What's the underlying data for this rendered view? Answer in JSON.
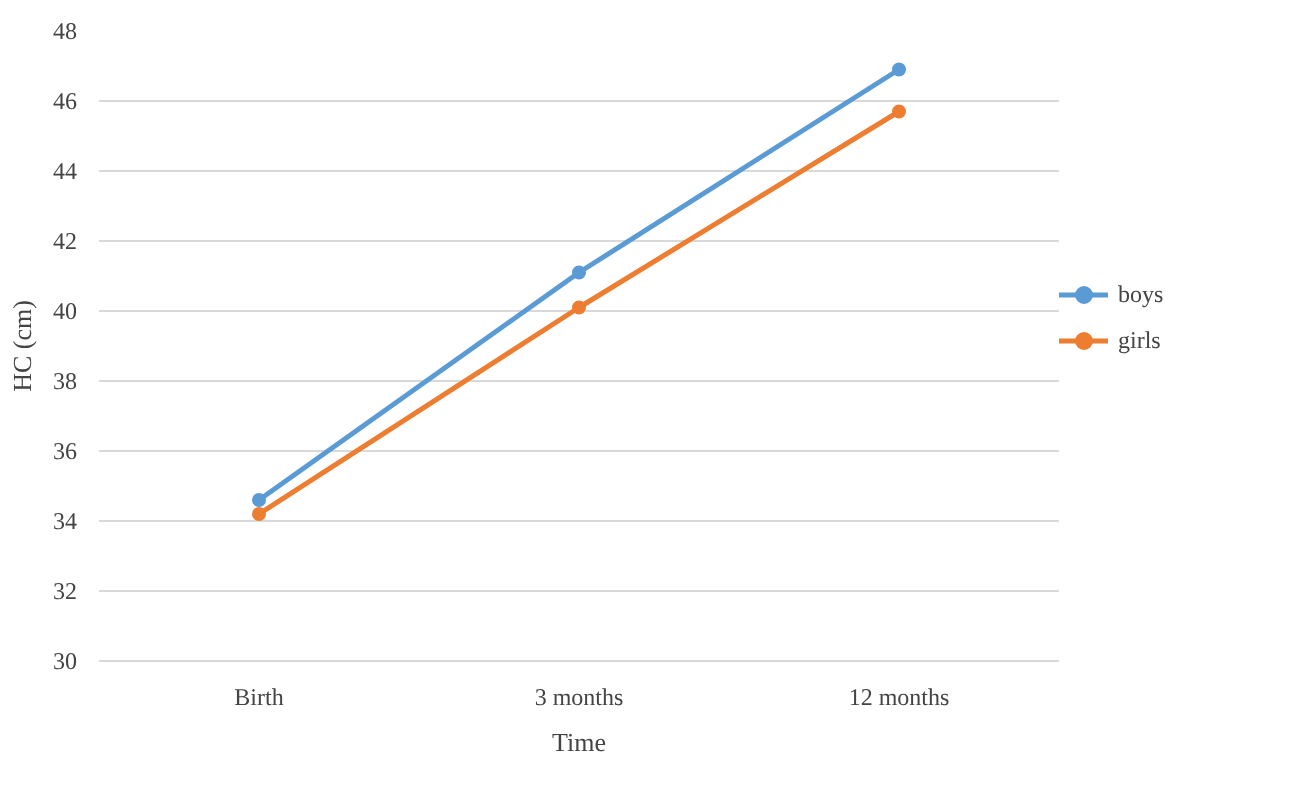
{
  "chart_data": {
    "type": "line",
    "xlabel": "Time",
    "ylabel": "HC (cm)",
    "categories": [
      "Birth",
      "3 months",
      "12 months"
    ],
    "series": [
      {
        "name": "boys",
        "color": "#5b9bd5",
        "values": [
          34.6,
          41.1,
          46.9
        ]
      },
      {
        "name": "girls",
        "color": "#ed7d31",
        "values": [
          34.2,
          40.1,
          45.7
        ]
      }
    ],
    "ylim": [
      30,
      48
    ],
    "yticks": [
      30,
      32,
      34,
      36,
      38,
      40,
      42,
      44,
      46,
      48
    ],
    "grid": "y",
    "legend": "right",
    "marker": "circle",
    "line_style": "solid"
  }
}
